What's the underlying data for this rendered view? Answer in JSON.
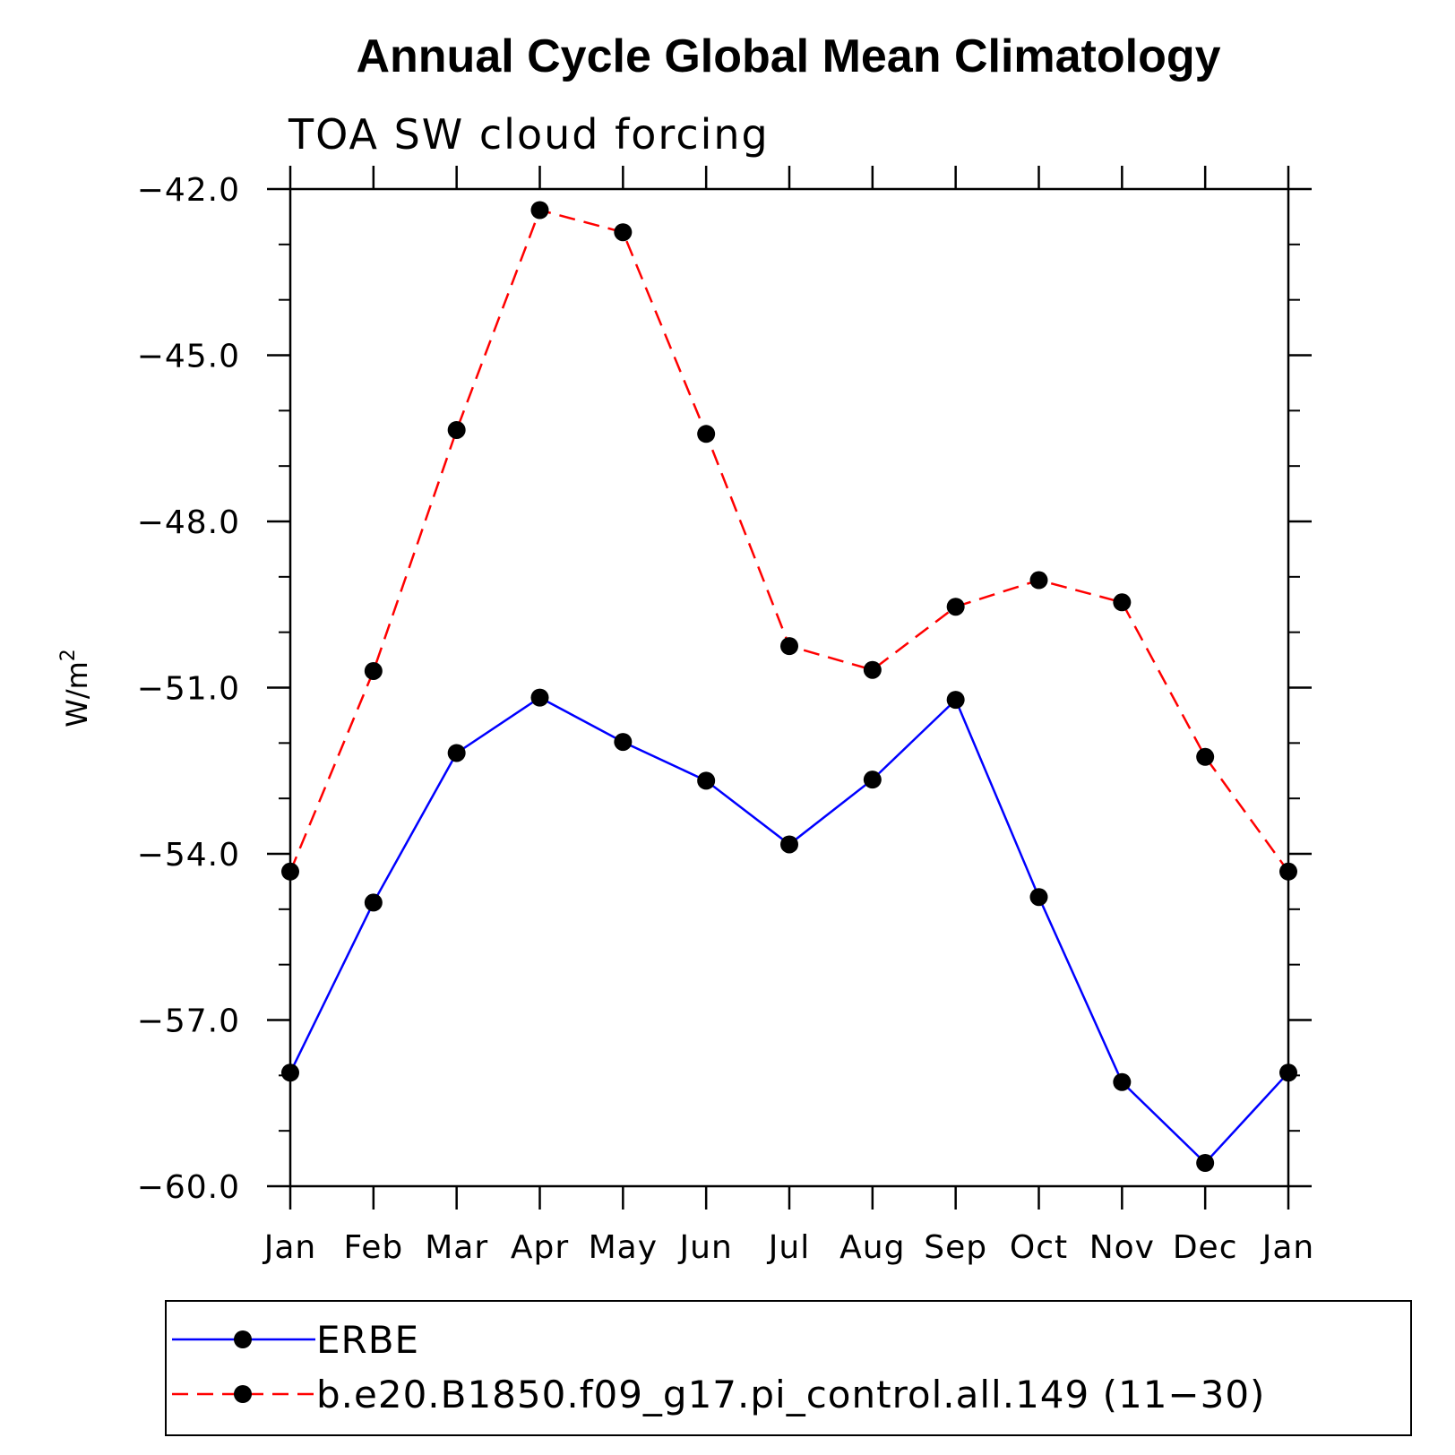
{
  "chart_data": {
    "type": "line",
    "title": "Annual Cycle Global Mean Climatology",
    "subtitle": "TOA SW cloud forcing",
    "ylabel": "W/m",
    "ylabel_superscript": "2",
    "xlabel": "",
    "categories": [
      "Jan",
      "Feb",
      "Mar",
      "Apr",
      "May",
      "Jun",
      "Jul",
      "Aug",
      "Sep",
      "Oct",
      "Nov",
      "Dec",
      "Jan"
    ],
    "ylim": [
      -60.0,
      -42.0
    ],
    "yticks": [
      -42.0,
      -45.0,
      -48.0,
      -51.0,
      -54.0,
      -57.0,
      -60.0
    ],
    "ytick_labels": [
      "−42.0",
      "−45.0",
      "−48.0",
      "−51.0",
      "−54.0",
      "−57.0",
      "−60.0"
    ],
    "grid": false,
    "legend_position": "bottom",
    "series": [
      {
        "name": "ERBE",
        "color": "#0000ff",
        "line_style": "solid",
        "marker": "filled-circle",
        "values": [
          -57.95,
          -54.88,
          -52.18,
          -51.18,
          -51.98,
          -52.68,
          -53.83,
          -52.66,
          -51.22,
          -54.78,
          -58.12,
          -59.58,
          -57.95
        ]
      },
      {
        "name": "b.e20.B1850.f09_g17.pi_control.all.149 (11−30)",
        "color": "#ff0000",
        "line_style": "dashed",
        "marker": "filled-circle",
        "values": [
          -54.32,
          -50.7,
          -46.35,
          -42.38,
          -42.78,
          -46.42,
          -50.25,
          -50.68,
          -49.54,
          -49.06,
          -49.46,
          -52.25,
          -54.32
        ]
      }
    ]
  }
}
